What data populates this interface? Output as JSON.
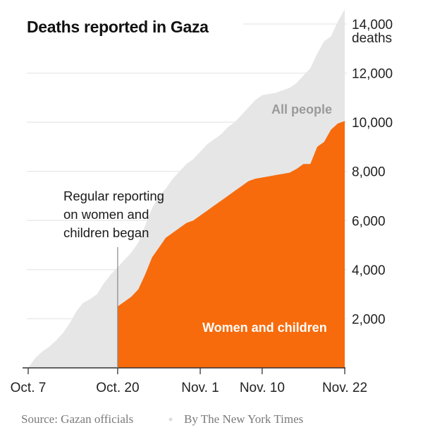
{
  "chart_data": {
    "type": "area",
    "title": "Deaths reported in Gaza",
    "y_unit_label": "deaths",
    "ylim": [
      0,
      14000
    ],
    "yticks": [
      2000,
      4000,
      6000,
      8000,
      10000,
      12000,
      14000
    ],
    "ytick_labels": [
      "2,000",
      "4,000",
      "6,000",
      "8,000",
      "10,000",
      "12,000",
      "14,000"
    ],
    "xlim_days": [
      0,
      46
    ],
    "xticks": [
      {
        "day": 0,
        "label": "Oct. 7"
      },
      {
        "day": 13,
        "label": "Oct. 20"
      },
      {
        "day": 25,
        "label": "Nov. 1"
      },
      {
        "day": 34,
        "label": "Nov. 10"
      },
      {
        "day": 46,
        "label": "Nov. 22"
      }
    ],
    "grid": true,
    "series": [
      {
        "name": "All people",
        "color": "#e6e6e6",
        "start_day": 0,
        "values": [
          0,
          400,
          650,
          850,
          1100,
          1400,
          1800,
          2300,
          2650,
          2800,
          3000,
          3450,
          3800,
          4100,
          4400,
          4700,
          5100,
          5800,
          6500,
          7000,
          7300,
          7700,
          8000,
          8300,
          8500,
          8800,
          9100,
          9300,
          9500,
          9800,
          10000,
          10300,
          10600,
          10900,
          11100,
          11150,
          11200,
          11300,
          11400,
          11600,
          11900,
          12200,
          12800,
          13300,
          13500,
          14100,
          14600
        ]
      },
      {
        "name": "Women and children",
        "color": "#f76b0c",
        "start_day": 13,
        "values": [
          2500,
          2700,
          2900,
          3200,
          3800,
          4500,
          4900,
          5300,
          5500,
          5700,
          5900,
          6000,
          6200,
          6400,
          6600,
          6800,
          7000,
          7200,
          7400,
          7600,
          7700,
          7750,
          7800,
          7850,
          7900,
          7950,
          8100,
          8300,
          8300,
          9000,
          9200,
          9700,
          9950,
          10050
        ]
      }
    ],
    "annotation": {
      "day": 13,
      "lines": [
        "Regular reporting",
        "on women and",
        "children began"
      ]
    },
    "footer": {
      "source": "Source: Gazan officials",
      "credit": "By The New York Times"
    }
  }
}
